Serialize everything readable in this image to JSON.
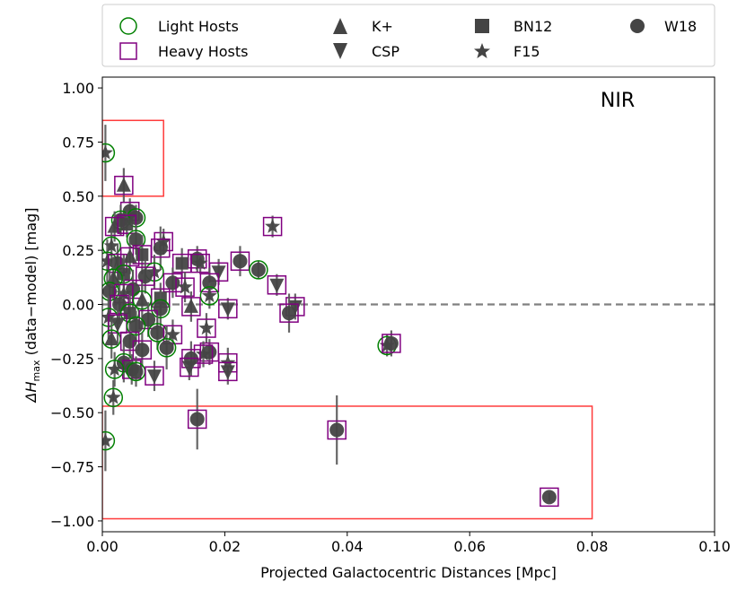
{
  "chart_data": {
    "type": "scatter",
    "xlabel": "Projected Galactocentric Distances [Mpc]",
    "ylabel_prefix": "ΔH",
    "ylabel_sub": "max",
    "ylabel_suffix": " (data−model) [mag]",
    "annotation": "NIR",
    "xlim": [
      0.0,
      0.1
    ],
    "ylim": [
      -1.05,
      1.05
    ],
    "xticks": [
      0.0,
      0.02,
      0.04,
      0.06,
      0.08,
      0.1
    ],
    "xtick_labels": [
      "0.00",
      "0.02",
      "0.04",
      "0.06",
      "0.08",
      "0.10"
    ],
    "yticks": [
      -1.0,
      -0.75,
      -0.5,
      -0.25,
      0.0,
      0.25,
      0.5,
      0.75,
      1.0
    ],
    "ytick_labels": [
      "−1.00",
      "−0.75",
      "−0.50",
      "−0.25",
      "0.00",
      "0.25",
      "0.50",
      "0.75",
      "1.00"
    ],
    "zero_line": 0.0,
    "regions": [
      {
        "name": "upper-outlier-box",
        "x": [
          0.0,
          0.01
        ],
        "y": [
          0.5,
          0.85
        ]
      },
      {
        "name": "lower-outlier-box",
        "x": [
          0.0,
          0.08
        ],
        "y": [
          -0.99,
          -0.47
        ]
      }
    ],
    "legend": {
      "position": "top",
      "entries": [
        {
          "label": "Light Hosts",
          "marker": "circle-open",
          "color": "#008000"
        },
        {
          "label": "Heavy Hosts",
          "marker": "square-open",
          "color": "#800080"
        },
        {
          "label": "K+",
          "marker": "triangle-up"
        },
        {
          "label": "CSP",
          "marker": "triangle-down"
        },
        {
          "label": "BN12",
          "marker": "square"
        },
        {
          "label": "F15",
          "marker": "star"
        },
        {
          "label": "W18",
          "marker": "circle"
        }
      ]
    },
    "colors": {
      "light": "#008000",
      "heavy": "#800080",
      "marker": "#444444",
      "errorbar": "#555555",
      "zero_line": "#808080",
      "region": "#ff3b3b"
    },
    "points": [
      {
        "x": 0.0005,
        "y": 0.7,
        "err": 0.13,
        "survey": "F15",
        "host": "Light"
      },
      {
        "x": 0.0035,
        "y": 0.55,
        "err": 0.08,
        "survey": "K+",
        "host": "Heavy"
      },
      {
        "x": 0.0045,
        "y": 0.43,
        "err": 0.06,
        "survey": "W18",
        "host": "Heavy"
      },
      {
        "x": 0.0055,
        "y": 0.4,
        "err": 0.06,
        "survey": "W18",
        "host": "Light"
      },
      {
        "x": 0.003,
        "y": 0.39,
        "err": 0.07,
        "survey": "W18",
        "host": "Light"
      },
      {
        "x": 0.002,
        "y": 0.36,
        "err": 0.07,
        "survey": "K+",
        "host": "Heavy"
      },
      {
        "x": 0.004,
        "y": 0.37,
        "err": 0.06,
        "survey": "BN12",
        "host": "Heavy"
      },
      {
        "x": 0.0278,
        "y": 0.36,
        "err": 0.05,
        "survey": "F15",
        "host": "Heavy"
      },
      {
        "x": 0.0055,
        "y": 0.3,
        "err": 0.07,
        "survey": "W18",
        "host": "Light"
      },
      {
        "x": 0.01,
        "y": 0.29,
        "err": 0.06,
        "survey": "F15",
        "host": "Heavy"
      },
      {
        "x": 0.0095,
        "y": 0.26,
        "err": 0.1,
        "survey": "W18",
        "host": "Heavy"
      },
      {
        "x": 0.0015,
        "y": 0.27,
        "err": 0.08,
        "survey": "F15",
        "host": "Light"
      },
      {
        "x": 0.0065,
        "y": 0.23,
        "err": 0.09,
        "survey": "BN12",
        "host": "Heavy"
      },
      {
        "x": 0.0008,
        "y": 0.2,
        "err": 0.1,
        "survey": "F15",
        "host": "Light"
      },
      {
        "x": 0.0025,
        "y": 0.19,
        "err": 0.09,
        "survey": "W18",
        "host": "Heavy"
      },
      {
        "x": 0.0045,
        "y": 0.22,
        "err": 0.08,
        "survey": "K+",
        "host": "Heavy"
      },
      {
        "x": 0.0155,
        "y": 0.21,
        "err": 0.06,
        "survey": "W18",
        "host": "Heavy"
      },
      {
        "x": 0.016,
        "y": 0.19,
        "err": 0.05,
        "survey": "F15",
        "host": "Heavy"
      },
      {
        "x": 0.013,
        "y": 0.19,
        "err": 0.07,
        "survey": "BN12",
        "host": "Heavy"
      },
      {
        "x": 0.0225,
        "y": 0.2,
        "err": 0.07,
        "survey": "W18",
        "host": "Heavy"
      },
      {
        "x": 0.0255,
        "y": 0.16,
        "err": 0.04,
        "survey": "W18",
        "host": "Light"
      },
      {
        "x": 0.019,
        "y": 0.15,
        "err": 0.06,
        "survey": "CSP",
        "host": "Heavy"
      },
      {
        "x": 0.0085,
        "y": 0.15,
        "err": 0.08,
        "survey": "F15",
        "host": "Light"
      },
      {
        "x": 0.0035,
        "y": 0.14,
        "err": 0.09,
        "survey": "BN12",
        "host": "Light"
      },
      {
        "x": 0.007,
        "y": 0.13,
        "err": 0.08,
        "survey": "W18",
        "host": "Heavy"
      },
      {
        "x": 0.0018,
        "y": 0.12,
        "err": 0.1,
        "survey": "K+",
        "host": "Light"
      },
      {
        "x": 0.0115,
        "y": 0.1,
        "err": 0.07,
        "survey": "W18",
        "host": "Heavy"
      },
      {
        "x": 0.0175,
        "y": 0.1,
        "err": 0.07,
        "survey": "W18",
        "host": "Heavy"
      },
      {
        "x": 0.0285,
        "y": 0.09,
        "err": 0.05,
        "survey": "CSP",
        "host": "Heavy"
      },
      {
        "x": 0.0135,
        "y": 0.08,
        "err": 0.07,
        "survey": "F15",
        "host": "Heavy"
      },
      {
        "x": 0.005,
        "y": 0.07,
        "err": 0.09,
        "survey": "W18",
        "host": "Heavy"
      },
      {
        "x": 0.0012,
        "y": 0.06,
        "err": 0.1,
        "survey": "W18",
        "host": "Light"
      },
      {
        "x": 0.0035,
        "y": 0.05,
        "err": 0.08,
        "survey": "F15",
        "host": "Heavy"
      },
      {
        "x": 0.0175,
        "y": 0.04,
        "err": 0.06,
        "survey": "F15",
        "host": "Light"
      },
      {
        "x": 0.0095,
        "y": 0.03,
        "err": 0.07,
        "survey": "BN12",
        "host": "Heavy"
      },
      {
        "x": 0.0065,
        "y": 0.02,
        "err": 0.08,
        "survey": "K+",
        "host": "Light"
      },
      {
        "x": 0.0028,
        "y": 0.0,
        "err": 0.09,
        "survey": "W18",
        "host": "Heavy"
      },
      {
        "x": 0.0145,
        "y": -0.01,
        "err": 0.07,
        "survey": "K+",
        "host": "Heavy"
      },
      {
        "x": 0.0205,
        "y": -0.02,
        "err": 0.05,
        "survey": "CSP",
        "host": "Heavy"
      },
      {
        "x": 0.0315,
        "y": -0.01,
        "err": 0.06,
        "survey": "CSP",
        "host": "Heavy"
      },
      {
        "x": 0.0095,
        "y": -0.02,
        "err": 0.09,
        "survey": "W18",
        "host": "Light"
      },
      {
        "x": 0.0305,
        "y": -0.04,
        "err": 0.09,
        "survey": "W18",
        "host": "Heavy"
      },
      {
        "x": 0.0045,
        "y": -0.04,
        "err": 0.08,
        "survey": "BN12",
        "host": "Light"
      },
      {
        "x": 0.001,
        "y": -0.06,
        "err": 0.1,
        "survey": "F15",
        "host": "Light"
      },
      {
        "x": 0.0075,
        "y": -0.07,
        "err": 0.08,
        "survey": "W18",
        "host": "Heavy"
      },
      {
        "x": 0.0025,
        "y": -0.09,
        "err": 0.09,
        "survey": "CSP",
        "host": "Heavy"
      },
      {
        "x": 0.0055,
        "y": -0.1,
        "err": 0.07,
        "survey": "W18",
        "host": "Light"
      },
      {
        "x": 0.017,
        "y": -0.11,
        "err": 0.07,
        "survey": "F15",
        "host": "Heavy"
      },
      {
        "x": 0.009,
        "y": -0.13,
        "err": 0.08,
        "survey": "W18",
        "host": "Light"
      },
      {
        "x": 0.0115,
        "y": -0.14,
        "err": 0.07,
        "survey": "F15",
        "host": "Heavy"
      },
      {
        "x": 0.0015,
        "y": -0.16,
        "err": 0.09,
        "survey": "K+",
        "host": "Light"
      },
      {
        "x": 0.0045,
        "y": -0.17,
        "err": 0.08,
        "survey": "W18",
        "host": "Heavy"
      },
      {
        "x": 0.0465,
        "y": -0.19,
        "err": 0.05,
        "survey": "F15",
        "host": "Light"
      },
      {
        "x": 0.0472,
        "y": -0.18,
        "err": 0.06,
        "survey": "W18",
        "host": "Heavy"
      },
      {
        "x": 0.0105,
        "y": -0.2,
        "err": 0.1,
        "survey": "W18",
        "host": "Light"
      },
      {
        "x": 0.0065,
        "y": -0.21,
        "err": 0.08,
        "survey": "W18",
        "host": "Heavy"
      },
      {
        "x": 0.0175,
        "y": -0.22,
        "err": 0.06,
        "survey": "W18",
        "host": "Heavy"
      },
      {
        "x": 0.0165,
        "y": -0.23,
        "err": 0.06,
        "survey": "F15",
        "host": "Heavy"
      },
      {
        "x": 0.0145,
        "y": -0.25,
        "err": 0.08,
        "survey": "W18",
        "host": "Heavy"
      },
      {
        "x": 0.0205,
        "y": -0.27,
        "err": 0.07,
        "survey": "F15",
        "host": "Heavy"
      },
      {
        "x": 0.0035,
        "y": -0.27,
        "err": 0.09,
        "survey": "W18",
        "host": "Light"
      },
      {
        "x": 0.0142,
        "y": -0.29,
        "err": 0.06,
        "survey": "CSP",
        "host": "Heavy"
      },
      {
        "x": 0.0048,
        "y": -0.3,
        "err": 0.07,
        "survey": "W18",
        "host": "Heavy"
      },
      {
        "x": 0.002,
        "y": -0.3,
        "err": 0.08,
        "survey": "F15",
        "host": "Light"
      },
      {
        "x": 0.0055,
        "y": -0.31,
        "err": 0.07,
        "survey": "W18",
        "host": "Light"
      },
      {
        "x": 0.0205,
        "y": -0.31,
        "err": 0.06,
        "survey": "CSP",
        "host": "Heavy"
      },
      {
        "x": 0.0085,
        "y": -0.33,
        "err": 0.07,
        "survey": "CSP",
        "host": "Heavy"
      },
      {
        "x": 0.0018,
        "y": -0.43,
        "err": 0.08,
        "survey": "F15",
        "host": "Light"
      },
      {
        "x": 0.0155,
        "y": -0.53,
        "err": 0.14,
        "survey": "W18",
        "host": "Heavy"
      },
      {
        "x": 0.0383,
        "y": -0.58,
        "err": 0.16,
        "survey": "W18",
        "host": "Heavy"
      },
      {
        "x": 0.0005,
        "y": -0.63,
        "err": 0.14,
        "survey": "F15",
        "host": "Light"
      },
      {
        "x": 0.073,
        "y": -0.89,
        "err": 0.02,
        "survey": "W18",
        "host": "Heavy"
      }
    ]
  }
}
